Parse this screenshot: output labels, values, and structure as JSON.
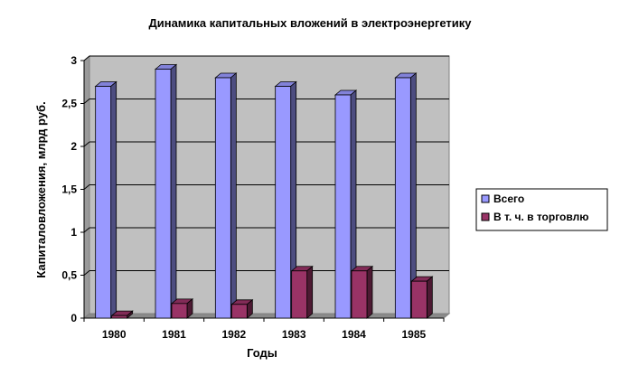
{
  "chart_data": {
    "type": "bar",
    "title": "Динамика капитальных вложений в электроэнергетику",
    "xlabel": "Годы",
    "ylabel": "Капиталовложения, млрд руб.",
    "categories": [
      "1980",
      "1981",
      "1982",
      "1983",
      "1984",
      "1985"
    ],
    "series": [
      {
        "name": "Всего",
        "values": [
          2.7,
          2.9,
          2.8,
          2.7,
          2.6,
          2.8
        ],
        "color": "#9999FF"
      },
      {
        "name": "В т. ч. в торговлю",
        "values": [
          0.03,
          0.17,
          0.16,
          0.55,
          0.55,
          0.43
        ],
        "color": "#993366"
      }
    ],
    "ylim": [
      0,
      3
    ],
    "yticks": [
      "0",
      "0,5",
      "1",
      "1,5",
      "2",
      "2,5",
      "3"
    ],
    "grid": true,
    "legend_position": "right",
    "plot_background": "#C0C0C0"
  }
}
